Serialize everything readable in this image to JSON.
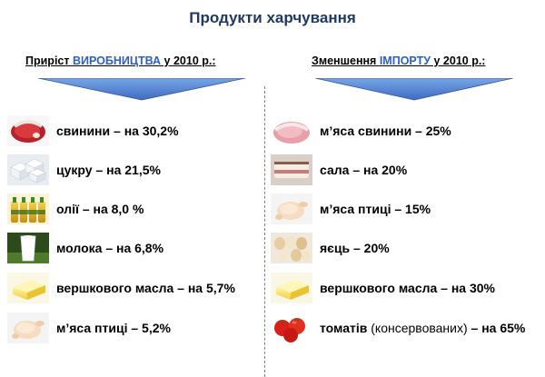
{
  "title": "Продукти харчування",
  "left": {
    "heading_prefix": "Приріст ",
    "heading_accent": "ВИРОБНИЦТВА",
    "heading_suffix": " у 2010 р.:",
    "items": [
      {
        "label": "свинини – на 30,2%",
        "icon": "pork-meat-icon"
      },
      {
        "label": "цукру – на 21,5%",
        "icon": "sugar-cubes-icon"
      },
      {
        "label": "олії – на 8,0 %",
        "icon": "oil-bottles-icon"
      },
      {
        "label": "молока – на 6,8%",
        "icon": "milk-glass-icon"
      },
      {
        "label": "вершкового масла – на 5,7%",
        "icon": "butter-icon"
      },
      {
        "label": "м’яса птиці – 5,2%",
        "icon": "poultry-icon"
      }
    ]
  },
  "right": {
    "heading_prefix": "Зменшення ",
    "heading_accent": "ІМПОРТУ",
    "heading_suffix": " у 2010 р.:",
    "items": [
      {
        "label": "м’яса свинини – 25%",
        "icon": "pork-meat-icon"
      },
      {
        "label": "сала – на 20%",
        "icon": "lard-icon"
      },
      {
        "label": "м’яса птиці – 15%",
        "icon": "poultry-icon"
      },
      {
        "label": "яєць – 20%",
        "icon": "eggs-icon"
      },
      {
        "label": "вершкового масла – на 30%",
        "icon": "butter-icon"
      }
    ],
    "last_item": {
      "part1": "томатів ",
      "part2": "(консервованих)",
      "part3": " – на 65%",
      "icon": "tomatoes-icon"
    }
  },
  "colors": {
    "title": "#1f3864",
    "accent": "#2b5fc4",
    "arrow_top": "#6f9bdc",
    "arrow_bottom": "#3f6fc1"
  }
}
